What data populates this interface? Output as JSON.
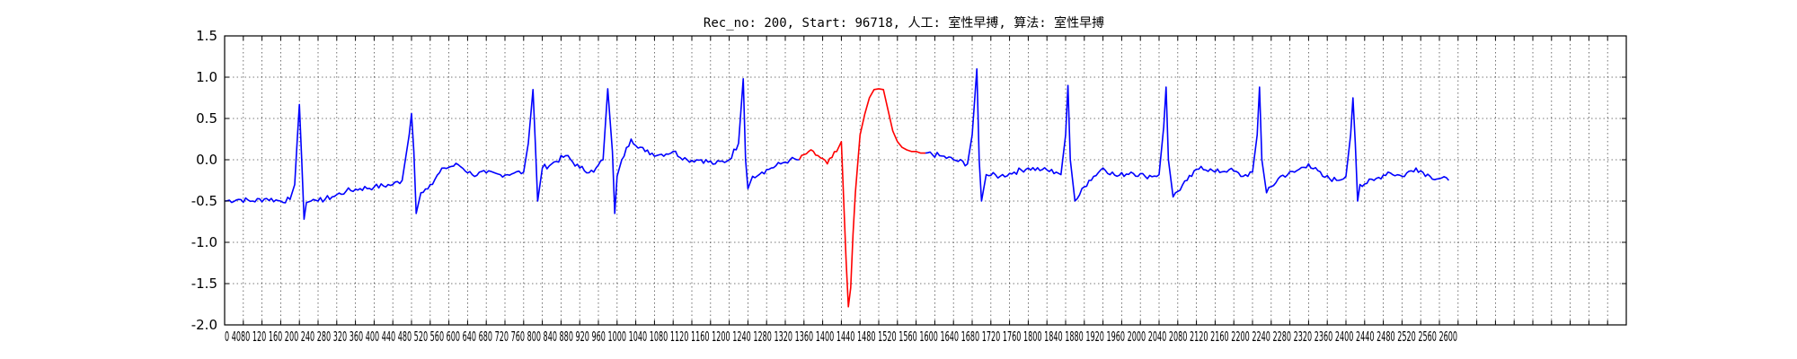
{
  "chart_data": {
    "type": "line",
    "title": "Rec_no: 200, Start: 96718, 人工: 室性早搏, 算法: 室性早搏",
    "xlabel": "",
    "ylabel": "",
    "xlim": [
      0,
      3000
    ],
    "ylim": [
      -2.0,
      1.5
    ],
    "yticks": [
      "1.5",
      "1.0",
      "0.5",
      "0.0",
      "-0.5",
      "-1.0",
      "-1.5",
      "-2.0"
    ],
    "ytick_values": [
      1.5,
      1.0,
      0.5,
      0.0,
      -0.5,
      -1.0,
      -1.5,
      -2.0
    ],
    "xtick_step": 40,
    "xtick_labels_rendered": "0 4080 120 160 200 240 280 320 360 400 440 480 520 560 600 640 680 720 760 800 840 880 920 960 1000 1040 1080 1120 1160 1200 1240 1280 1320 1360 1400 1440 1480 1520 1560 1600 1640 1680 1720 1760 1800 1840 1880 1920 1960 2000 2040 2080 2120 2160 2200 2240 2280 2320 2360 2400 2440 2480 2520 2560 2600",
    "grid": true,
    "legend": "none",
    "series": [
      {
        "color": "#0000ff",
        "x": [
          0,
          30,
          60,
          90,
          120,
          140,
          150,
          155,
          160,
          165,
          170,
          175,
          185,
          190,
          200,
          230,
          260,
          290,
          320,
          360,
          380,
          395,
          400,
          405,
          410,
          420,
          440,
          470,
          500,
          530,
          560,
          590,
          620,
          640,
          650,
          660,
          665,
          670,
          680,
          700,
          730,
          760,
          790,
          810,
          820,
          830,
          835,
          840,
          850,
          870,
          900,
          930,
          960,
          990,
          1020,
          1050,
          1080,
          1100,
          1110,
          1115,
          1120,
          1130,
          1150,
          1170,
          1190,
          1210,
          1230
        ],
        "y": [
          -0.5,
          -0.48,
          -0.5,
          -0.47,
          -0.5,
          -0.48,
          -0.3,
          0.2,
          0.67,
          0.0,
          -0.72,
          -0.52,
          -0.5,
          -0.48,
          -0.5,
          -0.45,
          -0.38,
          -0.35,
          -0.33,
          -0.3,
          -0.25,
          0.3,
          0.56,
          0.1,
          -0.65,
          -0.4,
          -0.3,
          -0.1,
          -0.06,
          -0.18,
          -0.16,
          -0.18,
          -0.16,
          -0.15,
          0.2,
          0.85,
          0.2,
          -0.5,
          -0.1,
          -0.05,
          0.05,
          -0.1,
          -0.15,
          0.0,
          0.86,
          0.1,
          -0.65,
          -0.2,
          0.0,
          0.25,
          0.1,
          0.06,
          0.1,
          0.0,
          0.0,
          -0.05,
          0.0,
          0.2,
          0.98,
          0.0,
          -0.35,
          -0.2,
          -0.15,
          -0.1,
          -0.05,
          0.0,
          0.0
        ]
      },
      {
        "color": "#ff0000",
        "x": [
          1230,
          1250,
          1270,
          1290,
          1310,
          1320,
          1330,
          1335,
          1340,
          1345,
          1350,
          1360,
          1370,
          1380,
          1390,
          1400,
          1410,
          1420,
          1430,
          1440,
          1450,
          1460,
          1470,
          1480,
          1490,
          1500
        ],
        "y": [
          0.0,
          0.1,
          0.05,
          -0.05,
          0.1,
          0.22,
          -1.2,
          -1.78,
          -1.55,
          -0.9,
          -0.4,
          0.3,
          0.55,
          0.75,
          0.85,
          0.86,
          0.85,
          0.6,
          0.35,
          0.22,
          0.15,
          0.12,
          0.1,
          0.1,
          0.08,
          0.08
        ]
      },
      {
        "color": "#0000ff",
        "x": [
          1500,
          1530,
          1560,
          1590,
          1600,
          1610,
          1615,
          1620,
          1630,
          1660,
          1690,
          1720,
          1750,
          1780,
          1790,
          1800,
          1805,
          1810,
          1820,
          1850,
          1880,
          1910,
          1940,
          1970,
          2000,
          2010,
          2015,
          2020,
          2030,
          2060,
          2090,
          2120,
          2150,
          2180,
          2200,
          2210,
          2215,
          2220,
          2230,
          2260,
          2290,
          2320,
          2350,
          2380,
          2400,
          2410,
          2415,
          2420,
          2425,
          2430,
          2460,
          2490,
          2520,
          2550,
          2580,
          2620
        ],
        "y": [
          0.08,
          0.05,
          0.0,
          -0.05,
          0.3,
          1.1,
          0.0,
          -0.5,
          -0.18,
          -0.2,
          -0.15,
          -0.1,
          -0.12,
          -0.15,
          -0.18,
          0.3,
          0.9,
          0.0,
          -0.5,
          -0.25,
          -0.1,
          -0.2,
          -0.15,
          -0.2,
          -0.18,
          0.4,
          0.88,
          0.0,
          -0.45,
          -0.25,
          -0.08,
          -0.15,
          -0.12,
          -0.2,
          -0.15,
          0.3,
          0.88,
          0.0,
          -0.4,
          -0.2,
          -0.15,
          -0.05,
          -0.2,
          -0.25,
          -0.2,
          0.3,
          0.75,
          0.2,
          -0.5,
          -0.3,
          -0.25,
          -0.15,
          -0.2,
          -0.1,
          -0.2,
          -0.25
        ]
      }
    ]
  }
}
